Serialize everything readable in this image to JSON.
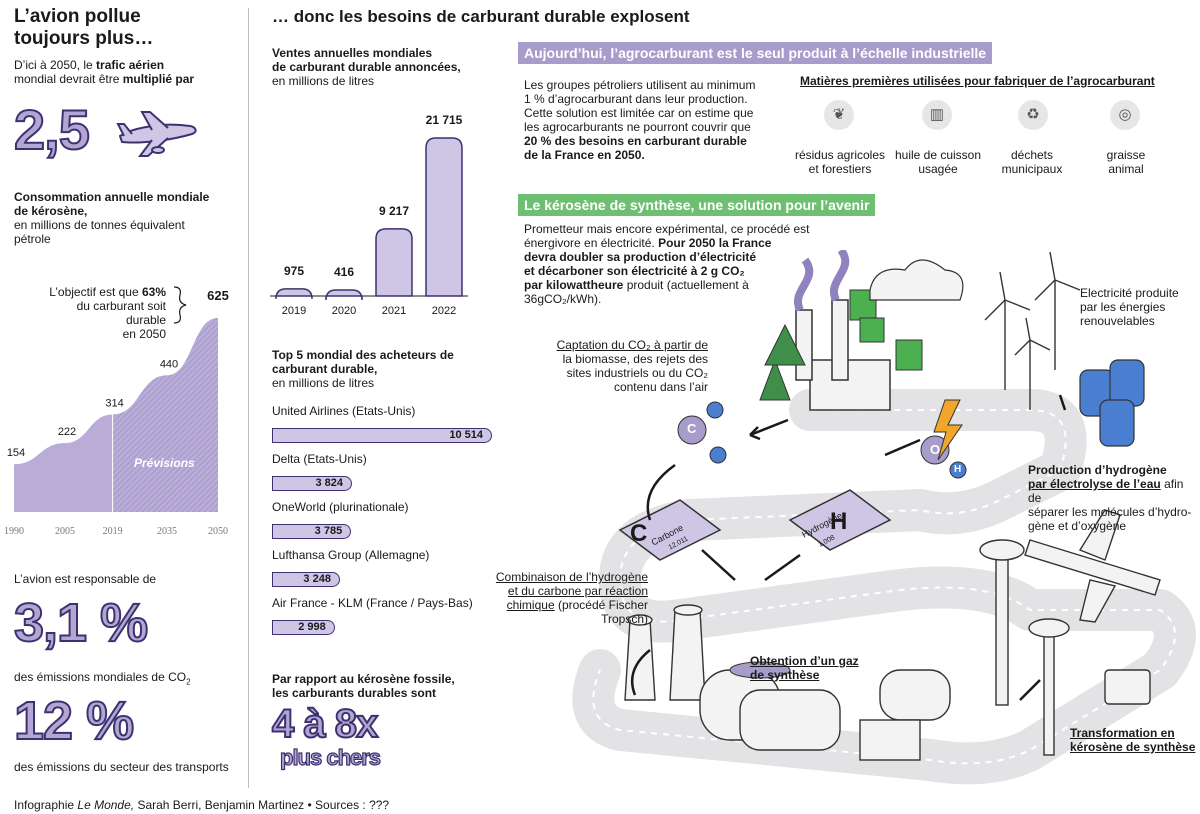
{
  "left": {
    "title_l1": "L’avion pollue",
    "title_l2": "toujours plus…",
    "traffic_l1a": "D’ici à 2050, le ",
    "traffic_l1b": "trafic aérien",
    "traffic_l2a": "mondial devrait être ",
    "traffic_l2b": "multiplié par",
    "multiplier": "2,5",
    "kero_title_l1": "Consommation annuelle mondiale",
    "kero_title_l2": "de kérosène,",
    "kero_sub_l1": "en millions de tonnes équivalent",
    "kero_sub_l2": "pétrole",
    "objective_l1a": "L’objectif est que ",
    "objective_l1b": "63%",
    "objective_l2": "du carburant soit durable",
    "objective_l3": "en 2050",
    "forecast_label": "Prévisions",
    "responsible": "L’avion est responsable de",
    "pct1": "3,1 %",
    "co2_text_a": "des émissions mondiales de CO",
    "co2_sub": "2",
    "pct2": "12 %",
    "transport_text": "des émissions du secteur des transports"
  },
  "middle": {
    "title": "… donc les besoins de carburant durable explosent",
    "sales_title_l1": "Ventes annuelles mondiales",
    "sales_title_l2": "de carburant durable annoncées,",
    "sales_sub": "en millions de litres",
    "top5_title_l1": "Top 5 mondial des acheteurs de",
    "top5_title_l2": "carburant durable,",
    "top5_sub": "en millions de litres",
    "compare_l1": "Par rapport au kérosène fossile,",
    "compare_l2": "les carburants durables sont",
    "compare_big": "4 à 8x",
    "compare_big2": "plus chers"
  },
  "right": {
    "banner1": "Aujourd’hui, l’agrocarburant est le seul produit à l’échelle industrielle",
    "agro_l1": "Les groupes pétroliers utilisent au minimum",
    "agro_l2": "1 % d’agrocarburant dans leur production.",
    "agro_l3": "Cette solution est limitée car on estime que",
    "agro_l4": "les agrocarburants ne pourront couvrir que",
    "agro_l5": "20 % des besoins en carburant durable",
    "agro_l6": "de la France en 2050.",
    "materials_title": "Matières premières utilisées pour fabriquer de l’agrocarburant",
    "materials": [
      {
        "l1": "résidus agricoles",
        "l2": "et forestiers",
        "icon": "leaf-icon"
      },
      {
        "l1": "huile de cuisson",
        "l2": "usagée",
        "icon": "jar-icon"
      },
      {
        "l1": "déchets",
        "l2": "municipaux",
        "icon": "recycle-icon"
      },
      {
        "l1": "graisse",
        "l2": "animal",
        "icon": "fat-icon"
      }
    ],
    "banner2": "Le kérosène de synthèse, une solution pour l’avenir",
    "synth_l1": "Prometteur mais encore expérimental, ce procédé est",
    "synth_l2": "énergivore en électricité. ",
    "synth_l2b": "Pour 2050 la France",
    "synth_l3": "devra doubler sa production d’électricité",
    "synth_l4": "et décarboner son électricité à 2 g CO₂",
    "synth_l5a": "par kilowattheure",
    "synth_l5b": " produit (actuellement à",
    "synth_l6": "36gCO₂/kWh).",
    "capture_l1": "Captation du CO₂ à partir de",
    "capture_l2": "la biomasse, des rejets des",
    "capture_l3": "sites industriels ou du CO₂",
    "capture_l4": "contenu dans l’air",
    "elec_l1": "Electricité produite",
    "elec_l2": "par les énergies",
    "elec_l3": "renouvelables",
    "h2_l1": "Production d’hydrogène",
    "h2_l2a": "par électrolyse de l’eau",
    "h2_l2b": " afin de",
    "h2_l3": "séparer les molécules d’hydro-",
    "h2_l4": "gène et d’oxygène",
    "comb_l1": "Combinaison de l’hydrogène",
    "comb_l2": "et du carbone par réaction",
    "comb_l3a": "chimique",
    "comb_l3b": " (procédé Fischer",
    "comb_l4": "Tropsch)",
    "gas_l1": "Obtention d’un gaz",
    "gas_l2": "de synthèse",
    "transform_l1": "Transformation en",
    "transform_l2": "kérosène de synthèse",
    "carbon_letter": "C",
    "carbon_name": "Carbone",
    "carbon_mass": "12.011",
    "hydrogen_letter": "H",
    "hydrogen_name": "Hydrogène",
    "hydrogen_mass": "1.008",
    "atom_c": "C",
    "atom_o": "O",
    "atom_h": "H"
  },
  "footer": {
    "a": "Infographie ",
    "b": "Le Monde,",
    "c": " Sarah Berri, Benjamin Martinez • Sources : ???"
  },
  "colors": {
    "purple_light": "#cfc6e6",
    "purple_mid": "#a89cca",
    "purple_dark": "#3d3270",
    "green": "#6fbf73"
  },
  "chart_data": [
    {
      "type": "area",
      "title": "Consommation annuelle mondiale de kérosène",
      "ylabel": "millions de tonnes équivalent pétrole",
      "x": [
        1990,
        2005,
        2019,
        2035,
        2050
      ],
      "values": [
        154,
        222,
        314,
        440,
        625
      ],
      "value_labels": [
        "154",
        "222",
        "314",
        "440",
        "625"
      ],
      "x_tick_labels": [
        "1990",
        "2005",
        "2019",
        "2035",
        "2050"
      ],
      "forecast_from": 2019,
      "ylim": [
        0,
        625
      ]
    },
    {
      "type": "bar",
      "title": "Ventes annuelles mondiales de carburant durable annoncées",
      "ylabel": "millions de litres",
      "categories": [
        "2019",
        "2020",
        "2021",
        "2022"
      ],
      "values": [
        975,
        416,
        9217,
        21715
      ],
      "value_labels": [
        "975",
        "416",
        "9 217",
        "21 715"
      ],
      "ylim": [
        0,
        21715
      ]
    },
    {
      "type": "bar",
      "orientation": "horizontal",
      "title": "Top 5 mondial des acheteurs de carburant durable",
      "ylabel": "millions de litres",
      "categories": [
        "United Airlines (Etats-Unis)",
        "Delta (Etats-Unis)",
        "OneWorld (plurinationale)",
        "Lufthansa Group (Allemagne)",
        "Air France - KLM (France / Pays-Bas)"
      ],
      "values": [
        10514,
        3824,
        3785,
        3248,
        2998
      ],
      "value_labels": [
        "10 514",
        "3 824",
        "3 785",
        "3 248",
        "2 998"
      ]
    }
  ]
}
